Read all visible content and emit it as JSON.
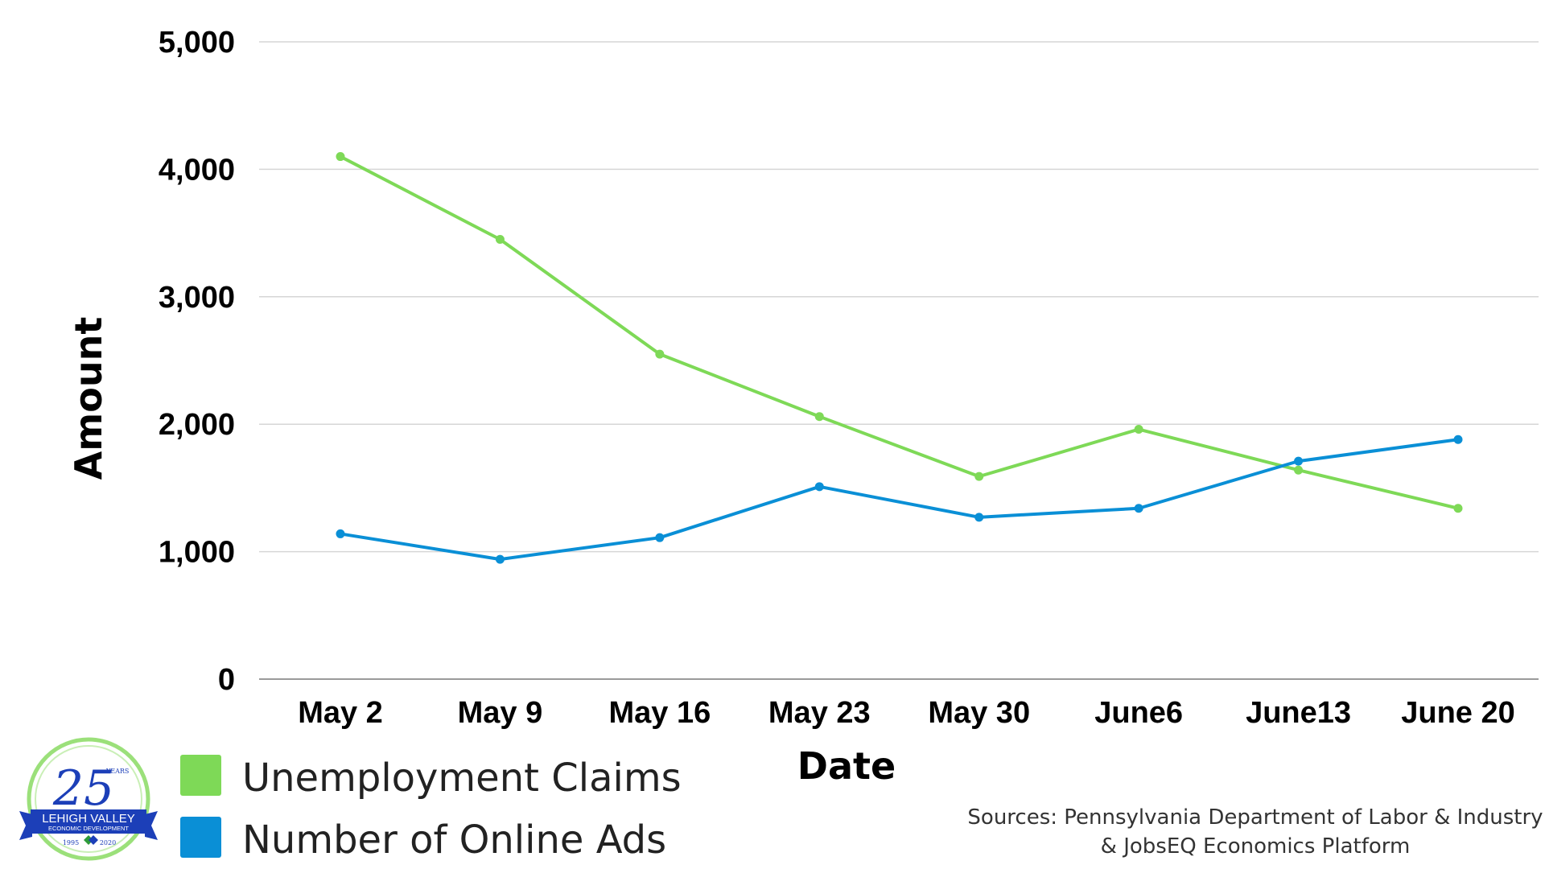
{
  "chart_data": {
    "type": "line",
    "categories": [
      "May 2",
      "May 9",
      "May 16",
      "May 23",
      "May 30",
      "June6",
      "June13",
      "June 20"
    ],
    "series": [
      {
        "name": "Unemployment Claims",
        "color": "#7ed957",
        "values": [
          4100,
          3450,
          2550,
          2060,
          1590,
          1960,
          1640,
          1340
        ]
      },
      {
        "name": "Number of Online Ads",
        "color": "#0a8fd6",
        "values": [
          1140,
          940,
          1110,
          1510,
          1270,
          1340,
          1710,
          1880
        ]
      }
    ],
    "xlabel": "Date",
    "ylabel": "Amount",
    "yticks": [
      "0",
      "1,000",
      "2,000",
      "3,000",
      "4,000",
      "5,000"
    ],
    "ylim": [
      0,
      5000
    ],
    "grid": true,
    "legend_position": "bottom-left"
  },
  "sources": {
    "line1": "Sources: Pennsylvania Department of Labor & Industry",
    "line2": "& JobsEQ Economics Platform"
  },
  "logo": {
    "number": "25",
    "years": "YEARS",
    "org_line1": "LEHIGH VALLEY",
    "org_line2": "ECONOMIC DEVELOPMENT",
    "year_start": "1995",
    "year_end": "2020"
  }
}
